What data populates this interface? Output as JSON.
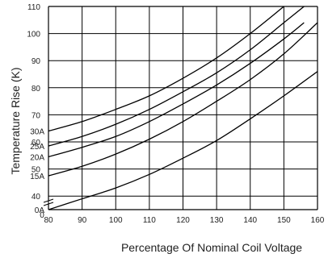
{
  "chart_data": {
    "type": "line",
    "title": "",
    "xlabel": "Percentage Of Nominal Coil Voltage",
    "ylabel": "Temperature Rise (K)",
    "xlim": [
      80,
      160
    ],
    "ylim": [
      35,
      110
    ],
    "x_ticks": [
      "80",
      "90",
      "100",
      "110",
      "120",
      "130",
      "140",
      "150",
      "160"
    ],
    "y_ticks": [
      "40",
      "50",
      "60",
      "70",
      "80",
      "90",
      "100",
      "110"
    ],
    "axis_origin_label": "0",
    "grid": true,
    "legend": "none",
    "series": [
      {
        "name": "30A",
        "x": [
          80,
          90,
          100,
          110,
          120,
          130,
          140,
          150,
          152
        ],
        "y": [
          64,
          67.5,
          72,
          77,
          83.5,
          91,
          100,
          110,
          112
        ]
      },
      {
        "name": "25A",
        "x": [
          80,
          90,
          100,
          110,
          120,
          130,
          140,
          150,
          156
        ],
        "y": [
          58.5,
          62,
          66.5,
          72,
          78.5,
          85.5,
          94,
          104,
          110
        ]
      },
      {
        "name": "20A",
        "x": [
          80,
          90,
          100,
          110,
          120,
          130,
          140,
          150,
          156
        ],
        "y": [
          54.5,
          58,
          62,
          67.5,
          74,
          81,
          89,
          98,
          104
        ]
      },
      {
        "name": "15A",
        "x": [
          80,
          90,
          100,
          110,
          120,
          130,
          140,
          150,
          160
        ],
        "y": [
          47.5,
          51,
          55.5,
          61,
          67.5,
          75,
          83,
          92.5,
          104
        ]
      },
      {
        "name": "0A",
        "x": [
          80,
          90,
          100,
          110,
          120,
          130,
          140,
          150,
          160
        ],
        "y": [
          35,
          39,
          43,
          48,
          54,
          60.5,
          68.5,
          77,
          86
        ]
      }
    ],
    "line_color": "#000000"
  }
}
